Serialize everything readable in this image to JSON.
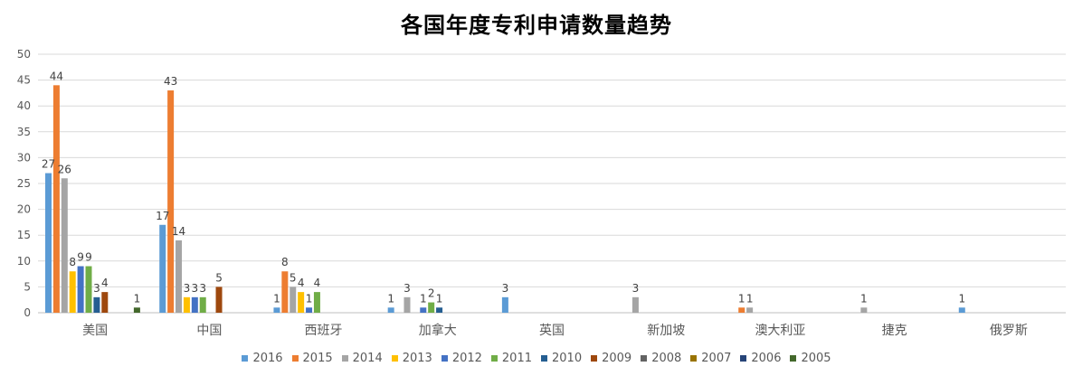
{
  "chart_data": {
    "type": "bar",
    "title": "各国年度专利申请数量趋势",
    "categories": [
      "美国",
      "中国",
      "西班牙",
      "加拿大",
      "英国",
      "新加坡",
      "澳大利亚",
      "捷克",
      "俄罗斯"
    ],
    "ylim": [
      0,
      50
    ],
    "yticks": [
      0,
      5,
      10,
      15,
      20,
      25,
      30,
      35,
      40,
      45,
      50
    ],
    "grid": true,
    "legend_position": "bottom",
    "series": [
      {
        "name": "2016",
        "color": "#5B9BD5",
        "values": [
          27,
          17,
          1,
          1,
          3,
          null,
          null,
          null,
          1
        ]
      },
      {
        "name": "2015",
        "color": "#ED7D31",
        "values": [
          44,
          43,
          8,
          null,
          null,
          null,
          1,
          null,
          null
        ]
      },
      {
        "name": "2014",
        "color": "#A5A5A5",
        "values": [
          26,
          14,
          5,
          3,
          null,
          3,
          1,
          1,
          null
        ]
      },
      {
        "name": "2013",
        "color": "#FFC000",
        "values": [
          8,
          3,
          4,
          null,
          null,
          null,
          null,
          null,
          null
        ]
      },
      {
        "name": "2012",
        "color": "#4472C4",
        "values": [
          9,
          3,
          1,
          1,
          null,
          null,
          null,
          null,
          null
        ]
      },
      {
        "name": "2011",
        "color": "#70AD47",
        "values": [
          9,
          3,
          4,
          2,
          null,
          null,
          null,
          null,
          null
        ]
      },
      {
        "name": "2010",
        "color": "#255E91",
        "values": [
          3,
          null,
          null,
          1,
          null,
          null,
          null,
          null,
          null
        ]
      },
      {
        "name": "2009",
        "color": "#9E480E",
        "values": [
          4,
          5,
          null,
          null,
          null,
          null,
          null,
          null,
          null
        ]
      },
      {
        "name": "2008",
        "color": "#636363",
        "values": [
          null,
          null,
          null,
          null,
          null,
          null,
          null,
          null,
          null
        ]
      },
      {
        "name": "2007",
        "color": "#997300",
        "values": [
          null,
          null,
          null,
          null,
          null,
          null,
          null,
          null,
          null
        ]
      },
      {
        "name": "2006",
        "color": "#264478",
        "values": [
          null,
          null,
          null,
          null,
          null,
          null,
          null,
          null,
          null
        ]
      },
      {
        "name": "2005",
        "color": "#43682B",
        "values": [
          1,
          null,
          null,
          null,
          null,
          null,
          null,
          null,
          null
        ]
      }
    ]
  }
}
